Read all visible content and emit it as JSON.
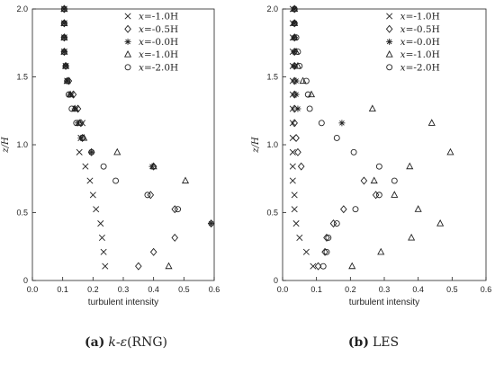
{
  "chart_data": [
    {
      "type": "scatter",
      "panel_tag": "(a)",
      "caption_model_k": "k",
      "caption_model_dash": "-",
      "caption_model_eps": "ε",
      "caption_model_rest": "(RNG)",
      "xlabel": "turbulent intensity",
      "ylabel": "z/H",
      "xlim": [
        0.0,
        0.6
      ],
      "ylim": [
        0.0,
        2.0
      ],
      "xticks": [
        "0.0",
        "0.1",
        "0.2",
        "0.3",
        "0.4",
        "0.5",
        "0.6"
      ],
      "yticks": [
        "0",
        "0.5",
        "1.0",
        "1.5",
        "2.0"
      ],
      "legend_position": "top-right",
      "series": [
        {
          "name_var": "x",
          "name_rest": "=-1.0H",
          "marker": "cross",
          "points": [
            [
              0.105,
              2.0
            ],
            [
              0.105,
              1.895
            ],
            [
              0.105,
              1.79
            ],
            [
              0.105,
              1.685
            ],
            [
              0.11,
              1.58
            ],
            [
              0.115,
              1.47
            ],
            [
              0.13,
              1.37
            ],
            [
              0.145,
              1.265
            ],
            [
              0.165,
              1.16
            ],
            [
              0.16,
              1.05
            ],
            [
              0.155,
              0.945
            ],
            [
              0.175,
              0.84
            ],
            [
              0.19,
              0.735
            ],
            [
              0.2,
              0.63
            ],
            [
              0.21,
              0.525
            ],
            [
              0.225,
              0.42
            ],
            [
              0.23,
              0.315
            ],
            [
              0.235,
              0.21
            ],
            [
              0.24,
              0.105
            ]
          ]
        },
        {
          "name_var": "x",
          "name_rest": "=-0.5H",
          "marker": "diamond",
          "points": [
            [
              0.105,
              2.0
            ],
            [
              0.105,
              1.895
            ],
            [
              0.105,
              1.79
            ],
            [
              0.105,
              1.685
            ],
            [
              0.11,
              1.58
            ],
            [
              0.12,
              1.47
            ],
            [
              0.135,
              1.37
            ],
            [
              0.15,
              1.265
            ],
            [
              0.16,
              1.16
            ],
            [
              0.165,
              1.05
            ],
            [
              0.195,
              0.945
            ],
            [
              0.4,
              0.84
            ],
            [
              0.39,
              0.63
            ],
            [
              0.47,
              0.525
            ],
            [
              0.59,
              0.42
            ],
            [
              0.47,
              0.315
            ],
            [
              0.4,
              0.21
            ],
            [
              0.35,
              0.105
            ]
          ]
        },
        {
          "name_var": "x",
          "name_rest": "=-0.0H",
          "marker": "asterisk",
          "points": [
            [
              0.105,
              2.0
            ],
            [
              0.105,
              1.895
            ],
            [
              0.105,
              1.79
            ],
            [
              0.105,
              1.685
            ],
            [
              0.11,
              1.58
            ],
            [
              0.115,
              1.47
            ],
            [
              0.125,
              1.37
            ],
            [
              0.14,
              1.265
            ],
            [
              0.15,
              1.16
            ],
            [
              0.16,
              1.05
            ],
            [
              0.195,
              0.945
            ],
            [
              0.395,
              0.84
            ],
            [
              0.59,
              0.42
            ]
          ]
        },
        {
          "name_var": "x",
          "name_rest": "=-1.0H",
          "marker": "triangle",
          "points": [
            [
              0.105,
              2.0
            ],
            [
              0.105,
              1.895
            ],
            [
              0.105,
              1.79
            ],
            [
              0.105,
              1.685
            ],
            [
              0.11,
              1.58
            ],
            [
              0.115,
              1.47
            ],
            [
              0.125,
              1.37
            ],
            [
              0.14,
              1.265
            ],
            [
              0.155,
              1.16
            ],
            [
              0.17,
              1.05
            ],
            [
              0.28,
              0.945
            ],
            [
              0.4,
              0.84
            ],
            [
              0.505,
              0.735
            ],
            [
              0.45,
              0.105
            ]
          ]
        },
        {
          "name_var": "x",
          "name_rest": "=-2.0H",
          "marker": "circle",
          "points": [
            [
              0.105,
              2.0
            ],
            [
              0.105,
              1.895
            ],
            [
              0.105,
              1.79
            ],
            [
              0.105,
              1.685
            ],
            [
              0.11,
              1.58
            ],
            [
              0.115,
              1.47
            ],
            [
              0.12,
              1.37
            ],
            [
              0.13,
              1.265
            ],
            [
              0.145,
              1.16
            ],
            [
              0.165,
              1.05
            ],
            [
              0.195,
              0.945
            ],
            [
              0.235,
              0.84
            ],
            [
              0.275,
              0.735
            ],
            [
              0.38,
              0.63
            ],
            [
              0.48,
              0.525
            ]
          ]
        }
      ]
    },
    {
      "type": "scatter",
      "panel_tag": "(b)",
      "caption_model": "LES",
      "xlabel": "turbulent intensity",
      "ylabel": "z/H",
      "xlim": [
        0.0,
        0.6
      ],
      "ylim": [
        0.0,
        2.0
      ],
      "xticks": [
        "0.0",
        "0.1",
        "0.2",
        "0.3",
        "0.4",
        "0.5",
        "0.6"
      ],
      "yticks": [
        "0",
        "0.5",
        "1.0",
        "1.5",
        "2.0"
      ],
      "legend_position": "top-right",
      "series": [
        {
          "name_var": "x",
          "name_rest": "=-1.0H",
          "marker": "cross",
          "points": [
            [
              0.03,
              2.0
            ],
            [
              0.03,
              1.895
            ],
            [
              0.03,
              1.79
            ],
            [
              0.03,
              1.685
            ],
            [
              0.03,
              1.58
            ],
            [
              0.03,
              1.47
            ],
            [
              0.03,
              1.37
            ],
            [
              0.03,
              1.265
            ],
            [
              0.03,
              1.16
            ],
            [
              0.03,
              1.05
            ],
            [
              0.03,
              0.945
            ],
            [
              0.03,
              0.84
            ],
            [
              0.03,
              0.735
            ],
            [
              0.035,
              0.63
            ],
            [
              0.035,
              0.525
            ],
            [
              0.04,
              0.42
            ],
            [
              0.05,
              0.315
            ],
            [
              0.07,
              0.21
            ],
            [
              0.09,
              0.105
            ]
          ]
        },
        {
          "name_var": "x",
          "name_rest": "=-0.5H",
          "marker": "diamond",
          "points": [
            [
              0.035,
              2.0
            ],
            [
              0.035,
              1.895
            ],
            [
              0.035,
              1.79
            ],
            [
              0.035,
              1.685
            ],
            [
              0.035,
              1.58
            ],
            [
              0.035,
              1.47
            ],
            [
              0.035,
              1.37
            ],
            [
              0.035,
              1.265
            ],
            [
              0.035,
              1.16
            ],
            [
              0.04,
              1.05
            ],
            [
              0.045,
              0.945
            ],
            [
              0.055,
              0.84
            ],
            [
              0.24,
              0.735
            ],
            [
              0.275,
              0.63
            ],
            [
              0.18,
              0.525
            ],
            [
              0.15,
              0.42
            ],
            [
              0.13,
              0.315
            ],
            [
              0.125,
              0.21
            ],
            [
              0.105,
              0.105
            ]
          ]
        },
        {
          "name_var": "x",
          "name_rest": "=-0.0H",
          "marker": "asterisk",
          "points": [
            [
              0.035,
              2.0
            ],
            [
              0.035,
              1.895
            ],
            [
              0.035,
              1.79
            ],
            [
              0.035,
              1.685
            ],
            [
              0.035,
              1.58
            ],
            [
              0.04,
              1.47
            ],
            [
              0.04,
              1.37
            ],
            [
              0.045,
              1.265
            ],
            [
              0.175,
              1.16
            ]
          ]
        },
        {
          "name_var": "x",
          "name_rest": "=-1.0H",
          "marker": "triangle",
          "points": [
            [
              0.035,
              2.0
            ],
            [
              0.035,
              1.895
            ],
            [
              0.035,
              1.79
            ],
            [
              0.04,
              1.685
            ],
            [
              0.045,
              1.58
            ],
            [
              0.06,
              1.47
            ],
            [
              0.085,
              1.37
            ],
            [
              0.265,
              1.265
            ],
            [
              0.44,
              1.16
            ],
            [
              0.495,
              0.945
            ],
            [
              0.375,
              0.84
            ],
            [
              0.27,
              0.735
            ],
            [
              0.33,
              0.63
            ],
            [
              0.4,
              0.525
            ],
            [
              0.465,
              0.42
            ],
            [
              0.38,
              0.315
            ],
            [
              0.29,
              0.21
            ],
            [
              0.205,
              0.105
            ]
          ]
        },
        {
          "name_var": "x",
          "name_rest": "=-2.0H",
          "marker": "circle",
          "points": [
            [
              0.035,
              2.0
            ],
            [
              0.035,
              1.895
            ],
            [
              0.04,
              1.79
            ],
            [
              0.045,
              1.685
            ],
            [
              0.05,
              1.58
            ],
            [
              0.07,
              1.47
            ],
            [
              0.075,
              1.37
            ],
            [
              0.08,
              1.265
            ],
            [
              0.115,
              1.16
            ],
            [
              0.16,
              1.05
            ],
            [
              0.21,
              0.945
            ],
            [
              0.285,
              0.84
            ],
            [
              0.33,
              0.735
            ],
            [
              0.285,
              0.63
            ],
            [
              0.215,
              0.525
            ],
            [
              0.16,
              0.42
            ],
            [
              0.135,
              0.315
            ],
            [
              0.13,
              0.21
            ],
            [
              0.12,
              0.105
            ]
          ]
        }
      ]
    }
  ]
}
